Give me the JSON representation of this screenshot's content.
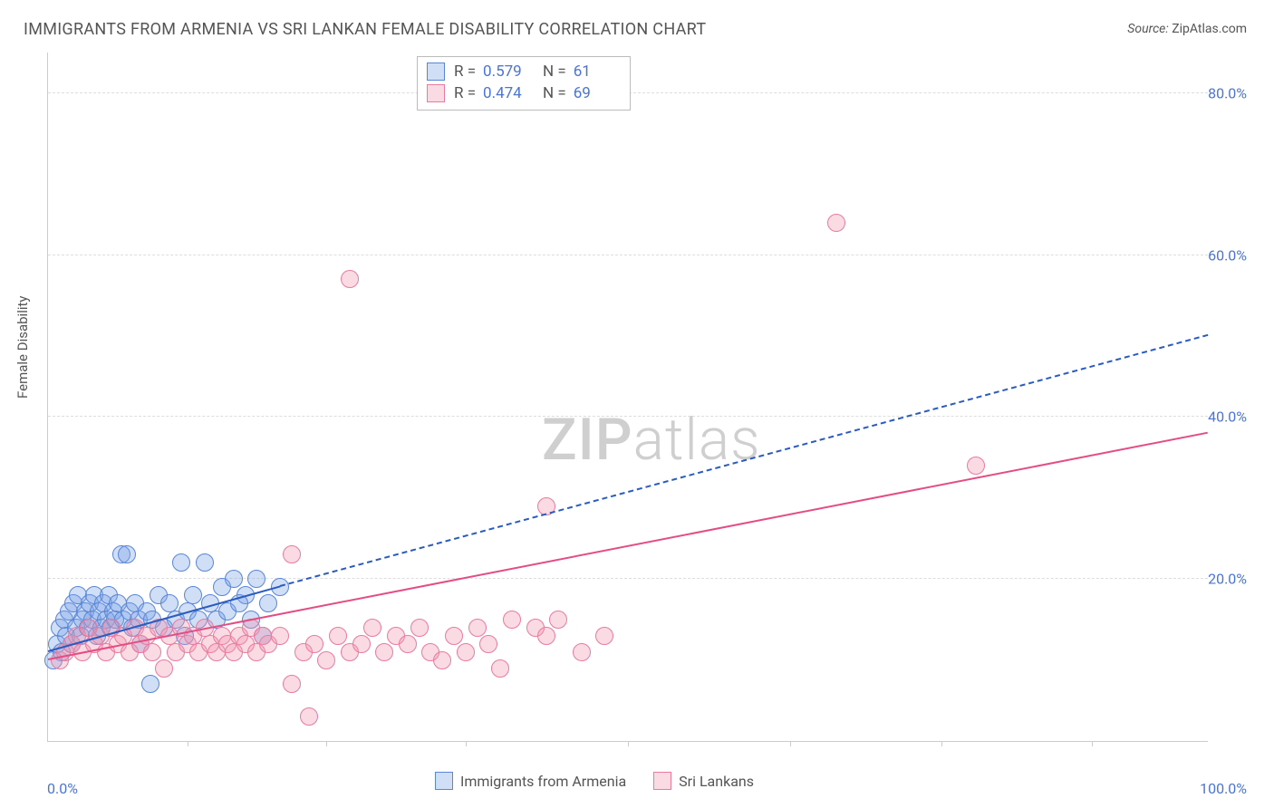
{
  "title": "IMMIGRANTS FROM ARMENIA VS SRI LANKAN FEMALE DISABILITY CORRELATION CHART",
  "source_label": "Source:",
  "source_value": "ZipAtlas.com",
  "y_axis_label": "Female Disability",
  "watermark_a": "ZIP",
  "watermark_b": "atlas",
  "chart": {
    "type": "scatter",
    "xlim": [
      0,
      100
    ],
    "ylim": [
      0,
      85
    ],
    "x_ticks": [
      0,
      100
    ],
    "x_tick_labels": [
      "0.0%",
      "100.0%"
    ],
    "x_minor_ticks": [
      12,
      24,
      36,
      50,
      64,
      77,
      90
    ],
    "y_ticks": [
      20,
      40,
      60,
      80
    ],
    "y_tick_labels": [
      "20.0%",
      "40.0%",
      "60.0%",
      "80.0%"
    ],
    "background_color": "#ffffff",
    "grid_color": "#dddddd",
    "axis_color": "#cccccc",
    "tick_label_color": "#4a74d6",
    "marker_radius": 9,
    "series": [
      {
        "name": "Immigrants from Armenia",
        "fill": "rgba(120,160,230,0.35)",
        "stroke": "#5a86d8",
        "R_label": "R =",
        "R": "0.579",
        "N_label": "N =",
        "N": "61",
        "trend": {
          "x1": 0,
          "y1": 11,
          "x2_solid": 20,
          "y2_solid": 19,
          "x2_dash": 100,
          "y2_dash": 50,
          "color": "#2a5bbf",
          "width": 2,
          "dash": "6,5"
        },
        "points": [
          [
            0.5,
            10
          ],
          [
            0.8,
            12
          ],
          [
            1.0,
            14
          ],
          [
            1.2,
            11
          ],
          [
            1.4,
            15
          ],
          [
            1.6,
            13
          ],
          [
            1.8,
            16
          ],
          [
            2.0,
            12
          ],
          [
            2.2,
            17
          ],
          [
            2.4,
            14
          ],
          [
            2.6,
            18
          ],
          [
            2.8,
            13
          ],
          [
            3.0,
            15
          ],
          [
            3.2,
            16
          ],
          [
            3.4,
            14
          ],
          [
            3.6,
            17
          ],
          [
            3.8,
            15
          ],
          [
            4.0,
            18
          ],
          [
            4.2,
            13
          ],
          [
            4.4,
            16
          ],
          [
            4.6,
            14
          ],
          [
            4.8,
            17
          ],
          [
            5.0,
            15
          ],
          [
            5.2,
            18
          ],
          [
            5.4,
            14
          ],
          [
            5.6,
            16
          ],
          [
            5.8,
            15
          ],
          [
            6.0,
            17
          ],
          [
            6.3,
            23
          ],
          [
            6.5,
            15
          ],
          [
            6.8,
            23
          ],
          [
            7.0,
            16
          ],
          [
            7.3,
            14
          ],
          [
            7.5,
            17
          ],
          [
            7.8,
            15
          ],
          [
            8.0,
            12
          ],
          [
            8.5,
            16
          ],
          [
            9.0,
            15
          ],
          [
            9.5,
            18
          ],
          [
            10.0,
            14
          ],
          [
            10.5,
            17
          ],
          [
            11.0,
            15
          ],
          [
            11.5,
            22
          ],
          [
            12.0,
            16
          ],
          [
            12.5,
            18
          ],
          [
            13.0,
            15
          ],
          [
            13.5,
            22
          ],
          [
            14.0,
            17
          ],
          [
            14.5,
            15
          ],
          [
            15.0,
            19
          ],
          [
            15.5,
            16
          ],
          [
            16.0,
            20
          ],
          [
            17.0,
            18
          ],
          [
            18.0,
            20
          ],
          [
            19.0,
            17
          ],
          [
            20.0,
            19
          ],
          [
            18.5,
            13
          ],
          [
            17.5,
            15
          ],
          [
            16.5,
            17
          ],
          [
            11.8,
            13
          ],
          [
            8.8,
            7
          ]
        ]
      },
      {
        "name": "Sri Lankans",
        "fill": "rgba(240,150,175,0.35)",
        "stroke": "#e97ba0",
        "R_label": "R =",
        "R": "0.474",
        "N_label": "N =",
        "N": "69",
        "trend": {
          "x1": 0,
          "y1": 10,
          "x2_solid": 100,
          "y2_solid": 38,
          "color": "#e34d84",
          "width": 2.5
        },
        "points": [
          [
            1,
            10
          ],
          [
            1.5,
            11
          ],
          [
            2,
            12
          ],
          [
            2.5,
            13
          ],
          [
            3,
            11
          ],
          [
            3.5,
            14
          ],
          [
            4,
            12
          ],
          [
            4.5,
            13
          ],
          [
            5,
            11
          ],
          [
            5.5,
            14
          ],
          [
            6,
            12
          ],
          [
            6.5,
            13
          ],
          [
            7,
            11
          ],
          [
            7.5,
            14
          ],
          [
            8,
            12
          ],
          [
            8.5,
            13
          ],
          [
            9,
            11
          ],
          [
            9.5,
            14
          ],
          [
            10,
            9
          ],
          [
            10.5,
            13
          ],
          [
            11,
            11
          ],
          [
            11.5,
            14
          ],
          [
            12,
            12
          ],
          [
            12.5,
            13
          ],
          [
            13,
            11
          ],
          [
            13.5,
            14
          ],
          [
            14,
            12
          ],
          [
            14.5,
            11
          ],
          [
            15,
            13
          ],
          [
            15.5,
            12
          ],
          [
            16,
            11
          ],
          [
            16.5,
            13
          ],
          [
            17,
            12
          ],
          [
            17.5,
            14
          ],
          [
            18,
            11
          ],
          [
            18.5,
            13
          ],
          [
            19,
            12
          ],
          [
            20,
            13
          ],
          [
            21,
            7
          ],
          [
            21,
            23
          ],
          [
            22,
            11
          ],
          [
            23,
            12
          ],
          [
            24,
            10
          ],
          [
            25,
            13
          ],
          [
            26,
            11
          ],
          [
            27,
            12
          ],
          [
            28,
            14
          ],
          [
            29,
            11
          ],
          [
            30,
            13
          ],
          [
            31,
            12
          ],
          [
            32,
            14
          ],
          [
            33,
            11
          ],
          [
            34,
            10
          ],
          [
            35,
            13
          ],
          [
            36,
            11
          ],
          [
            37,
            14
          ],
          [
            38,
            12
          ],
          [
            40,
            15
          ],
          [
            42,
            14
          ],
          [
            43,
            13
          ],
          [
            44,
            15
          ],
          [
            46,
            11
          ],
          [
            48,
            13
          ],
          [
            43,
            29
          ],
          [
            26,
            57
          ],
          [
            22.5,
            3
          ],
          [
            68,
            64
          ],
          [
            80,
            34
          ],
          [
            39,
            9
          ]
        ]
      }
    ]
  }
}
